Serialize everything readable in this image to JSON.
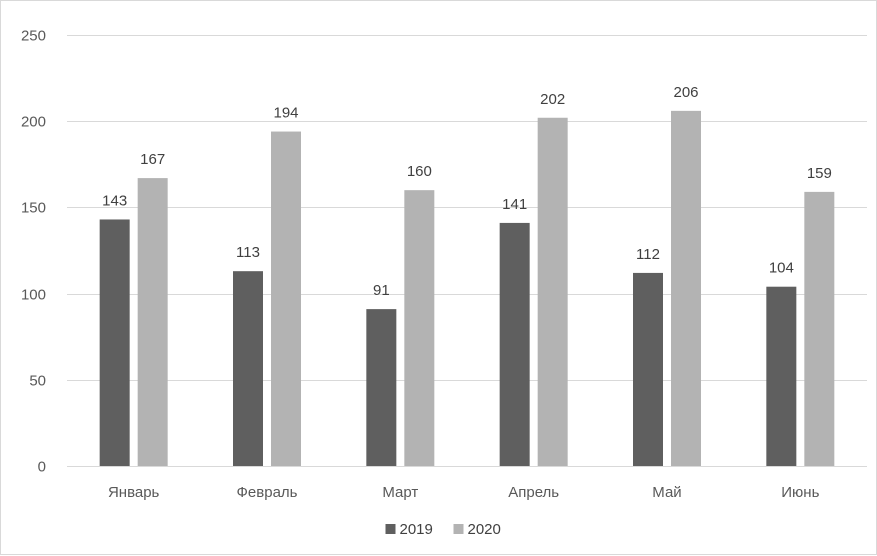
{
  "chart_data": {
    "type": "bar",
    "title": "",
    "xlabel": "",
    "ylabel": "",
    "categories": [
      "Январь",
      "Февраль",
      "Март",
      "Апрель",
      "Май",
      "Июнь"
    ],
    "series": [
      {
        "name": "2019",
        "values": [
          143,
          113,
          91,
          141,
          112,
          104
        ],
        "color": "#5f5f5f"
      },
      {
        "name": "2020",
        "values": [
          167,
          194,
          160,
          202,
          206,
          159
        ],
        "color": "#b3b3b3"
      }
    ],
    "ylim": [
      0,
      250
    ],
    "yticks": [
      "0",
      "50",
      "100",
      "150",
      "200",
      "250"
    ],
    "grid": true,
    "gridline_color": "#d9d9d9",
    "data_labels": true,
    "legend_position": "bottom"
  }
}
